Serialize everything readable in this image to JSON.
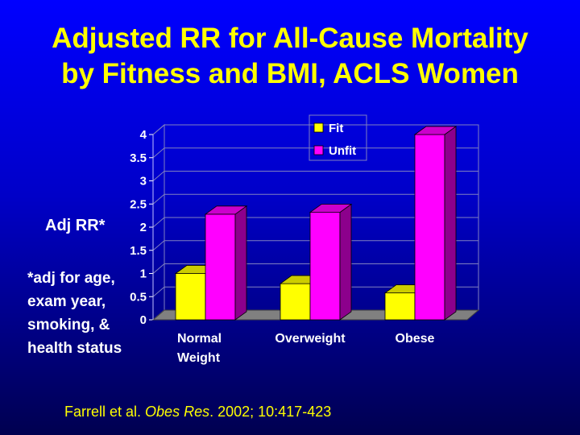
{
  "title": {
    "line1": "Adjusted RR for All-Cause Mortality",
    "line2": "by Fitness and BMI, ACLS Women"
  },
  "ylabel_text": "Adj RR*",
  "footnote": "*adj for age, exam year, smoking, & health status",
  "citation": {
    "authors": "Farrell et al.",
    "journal": "Obes Res",
    "details": ". 2002; 10:417-423"
  },
  "colors": {
    "background_top": "#0000ff",
    "background_bottom": "#000050",
    "title": "#ffff00",
    "fit": "#ffff00",
    "unfit": "#ff00ff",
    "floor": "#808080"
  },
  "chart_data": {
    "type": "bar",
    "title": "Adjusted RR for All-Cause Mortality by Fitness and BMI, ACLS Women",
    "xlabel": "",
    "ylabel": "Adj RR*",
    "categories": [
      [
        "Normal",
        "Weight"
      ],
      [
        "Overweight"
      ],
      [
        "Obese"
      ]
    ],
    "series": [
      {
        "name": "Fit",
        "values": [
          1.0,
          0.78,
          0.58
        ]
      },
      {
        "name": "Unfit",
        "values": [
          2.28,
          2.32,
          4.0
        ]
      }
    ],
    "ylim": [
      0,
      4
    ],
    "yticks": [
      "0",
      "0.5",
      "1",
      "1.5",
      "2",
      "2.5",
      "3",
      "3.5",
      "4"
    ],
    "legend_position": "top-right",
    "grid": true
  }
}
